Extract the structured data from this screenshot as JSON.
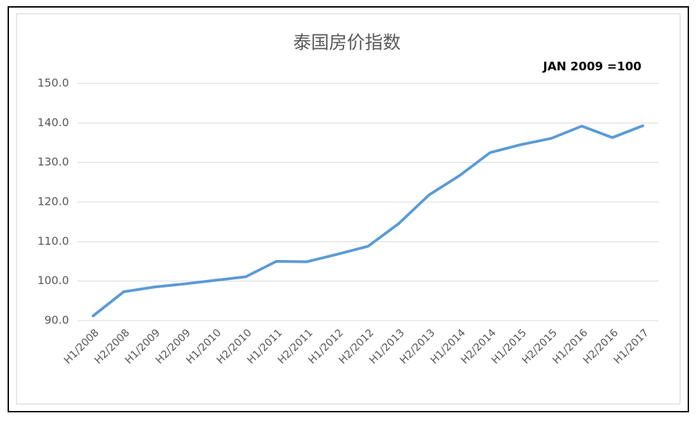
{
  "chart_data": {
    "type": "line",
    "title": "泰国房价指数",
    "annotation": "JAN 2009 =100",
    "categories": [
      "H1/2008",
      "H2/2008",
      "H1/2009",
      "H2/2009",
      "H1/2010",
      "H2/2010",
      "H1/2011",
      "H2/2011",
      "H1/2012",
      "H2/2012",
      "H1/2013",
      "H2/2013",
      "H1/2014",
      "H2/2014",
      "H1/2015",
      "H2/2015",
      "H1/2016",
      "H2/2016",
      "H1/2017"
    ],
    "series": [
      {
        "color": "#5b9bd5",
        "values": [
          91.2,
          97.3,
          98.5,
          99.3,
          100.2,
          101.1,
          105.0,
          104.9,
          106.8,
          108.8,
          114.5,
          121.8,
          126.7,
          132.5,
          134.5,
          136.1,
          139.2,
          136.3,
          139.3
        ]
      }
    ],
    "ylim": [
      90,
      150
    ],
    "yticks": [
      {
        "value": 90,
        "label": "90.0"
      },
      {
        "value": 100,
        "label": "100.0"
      },
      {
        "value": 110,
        "label": "110.0"
      },
      {
        "value": 120,
        "label": "120.0"
      },
      {
        "value": 130,
        "label": "130.0"
      },
      {
        "value": 140,
        "label": "140.0"
      },
      {
        "value": 150,
        "label": "150.0"
      }
    ],
    "grid": true
  }
}
